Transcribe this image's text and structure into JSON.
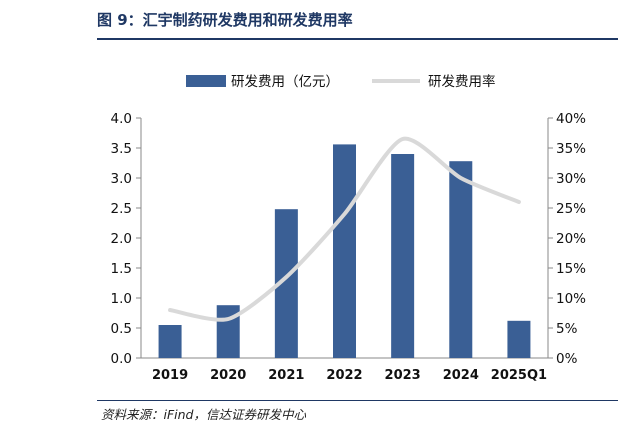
{
  "figure_title": "图 9：汇宇制药研发费用和研发费用率",
  "source_note": "资料来源：iFind，信达证券研发中心",
  "colors": {
    "bar": "#3a5f95",
    "line": "#d9d9d9",
    "title": "#1f3864",
    "axis": "#888888"
  },
  "chart_data": {
    "type": "bar",
    "categories": [
      "2019",
      "2020",
      "2021",
      "2022",
      "2023",
      "2024",
      "2025Q1"
    ],
    "series": [
      {
        "name": "研发费用（亿元）",
        "type": "bar",
        "axis": "left",
        "values": [
          0.55,
          0.88,
          2.48,
          3.56,
          3.4,
          3.28,
          0.62
        ]
      },
      {
        "name": "研发费用率",
        "type": "line",
        "axis": "right",
        "values": [
          8.0,
          6.5,
          13.5,
          24.0,
          36.5,
          30.0,
          26.0
        ]
      }
    ],
    "y_left": {
      "range": [
        0,
        4.0
      ],
      "ticks": [
        "0.0",
        "0.5",
        "1.0",
        "1.5",
        "2.0",
        "2.5",
        "3.0",
        "3.5",
        "4.0"
      ]
    },
    "y_right": {
      "range": [
        0,
        40
      ],
      "ticks": [
        "0%",
        "5%",
        "10%",
        "15%",
        "20%",
        "25%",
        "30%",
        "35%",
        "40%"
      ]
    },
    "legend_position": "top-center",
    "grid": false
  }
}
